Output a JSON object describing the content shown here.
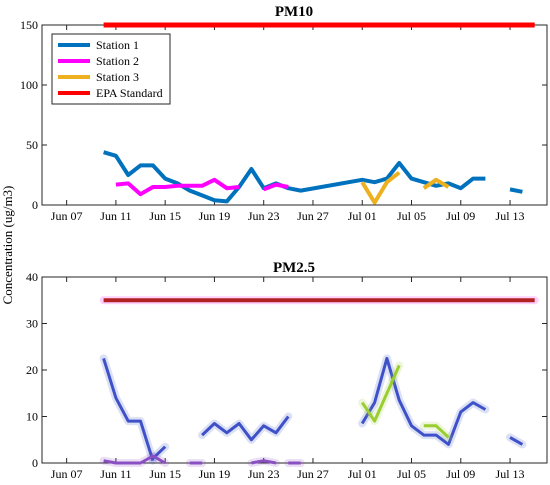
{
  "figure": {
    "shared_ylabel": "Concentration (ug/m3)",
    "x_tick_labels": [
      "Jun 07",
      "Jun 11",
      "Jun 15",
      "Jun 19",
      "Jun 23",
      "Jun 27",
      "Jul 01",
      "Jul 05",
      "Jul 09",
      "Jul 13"
    ]
  },
  "colors": {
    "station1": "#0072BD",
    "station2": "#FF00FF",
    "station3": "#EDB120",
    "epa": "#FF0000"
  },
  "chart_data": [
    {
      "type": "line",
      "title": "PM10",
      "ylabel": "Concentration (ug/m3)",
      "xlim": [
        "2020-06-05",
        "2020-07-16"
      ],
      "ylim": [
        0,
        150
      ],
      "y_ticks": [
        0,
        50,
        100,
        150
      ],
      "legend_position": "top-left",
      "series": [
        {
          "name": "Station 1",
          "color": "#0072BD",
          "segments": [
            [
              [
                "2020-06-10",
                44
              ],
              [
                "2020-06-11",
                41
              ],
              [
                "2020-06-12",
                25
              ],
              [
                "2020-06-13",
                33
              ],
              [
                "2020-06-14",
                33
              ],
              [
                "2020-06-15",
                22
              ],
              [
                "2020-06-16",
                18
              ],
              [
                "2020-06-17",
                12
              ],
              [
                "2020-06-18",
                8
              ],
              [
                "2020-06-19",
                4
              ],
              [
                "2020-06-20",
                3
              ],
              [
                "2020-06-21",
                15
              ],
              [
                "2020-06-22",
                30
              ],
              [
                "2020-06-23",
                14
              ],
              [
                "2020-06-24",
                18
              ],
              [
                "2020-06-25",
                14
              ],
              [
                "2020-06-26",
                12
              ],
              [
                "2020-07-01",
                21
              ],
              [
                "2020-07-02",
                19
              ],
              [
                "2020-07-03",
                22
              ],
              [
                "2020-07-04",
                35
              ],
              [
                "2020-07-05",
                22
              ],
              [
                "2020-07-06",
                19
              ],
              [
                "2020-07-07",
                16
              ],
              [
                "2020-07-08",
                18
              ],
              [
                "2020-07-09",
                14
              ],
              [
                "2020-07-10",
                22
              ],
              [
                "2020-07-11",
                22
              ]
            ],
            [
              [
                "2020-07-13",
                13
              ],
              [
                "2020-07-14",
                11
              ]
            ]
          ]
        },
        {
          "name": "Station 2",
          "color": "#FF00FF",
          "segments": [
            [
              [
                "2020-06-11",
                17
              ],
              [
                "2020-06-12",
                18
              ],
              [
                "2020-06-13",
                9
              ],
              [
                "2020-06-14",
                15
              ],
              [
                "2020-06-15",
                15
              ],
              [
                "2020-06-16",
                16
              ],
              [
                "2020-06-17",
                16
              ],
              [
                "2020-06-18",
                16
              ],
              [
                "2020-06-19",
                21
              ],
              [
                "2020-06-20",
                14
              ],
              [
                "2020-06-21",
                15
              ]
            ],
            [
              [
                "2020-06-23",
                13
              ],
              [
                "2020-06-24",
                17
              ],
              [
                "2020-06-25",
                15
              ]
            ]
          ]
        },
        {
          "name": "Station 3",
          "color": "#EDB120",
          "segments": [
            [
              [
                "2020-07-01",
                19
              ],
              [
                "2020-07-02",
                2
              ],
              [
                "2020-07-03",
                19
              ],
              [
                "2020-07-04",
                27
              ]
            ],
            [
              [
                "2020-07-06",
                14
              ],
              [
                "2020-07-07",
                21
              ],
              [
                "2020-07-08",
                15
              ]
            ]
          ]
        },
        {
          "name": "EPA Standard",
          "color": "#FF0000",
          "segments": [
            [
              [
                "2020-06-10",
                150
              ],
              [
                "2020-07-15",
                150
              ]
            ]
          ]
        }
      ]
    },
    {
      "type": "line",
      "title": "PM2.5",
      "ylabel": "Concentration (ug/m3)",
      "xlim": [
        "2020-06-05",
        "2020-07-16"
      ],
      "ylim": [
        0,
        40
      ],
      "y_ticks": [
        0,
        10,
        20,
        30,
        40
      ],
      "series": [
        {
          "color": "#3F51C9",
          "segments": [
            [
              [
                "2020-06-10",
                22.5
              ],
              [
                "2020-06-11",
                14
              ],
              [
                "2020-06-12",
                9
              ],
              [
                "2020-06-13",
                9
              ],
              [
                "2020-06-14",
                0.5
              ]
            ],
            [
              [
                "2020-06-14",
                1
              ],
              [
                "2020-06-15",
                3.5
              ]
            ],
            [
              [
                "2020-06-18",
                6
              ],
              [
                "2020-06-19",
                8.5
              ],
              [
                "2020-06-20",
                6.5
              ],
              [
                "2020-06-21",
                8.5
              ],
              [
                "2020-06-22",
                5
              ],
              [
                "2020-06-23",
                8
              ],
              [
                "2020-06-24",
                6.5
              ],
              [
                "2020-06-25",
                10
              ]
            ],
            [
              [
                "2020-07-01",
                8.5
              ],
              [
                "2020-07-02",
                13
              ],
              [
                "2020-07-03",
                22.5
              ],
              [
                "2020-07-04",
                13.5
              ],
              [
                "2020-07-05",
                8
              ],
              [
                "2020-07-06",
                6
              ],
              [
                "2020-07-07",
                6
              ],
              [
                "2020-07-08",
                4
              ],
              [
                "2020-07-09",
                11
              ],
              [
                "2020-07-10",
                13
              ],
              [
                "2020-07-11",
                11.5
              ]
            ],
            [
              [
                "2020-07-13",
                5.5
              ],
              [
                "2020-07-14",
                4
              ]
            ]
          ]
        },
        {
          "color": "#8B4FC4",
          "segments": [
            [
              [
                "2020-06-10",
                0.5
              ],
              [
                "2020-06-11",
                0
              ],
              [
                "2020-06-12",
                0
              ],
              [
                "2020-06-13",
                0
              ],
              [
                "2020-06-14",
                1.5
              ],
              [
                "2020-06-15",
                0
              ]
            ],
            [
              [
                "2020-06-17",
                0
              ],
              [
                "2020-06-18",
                0
              ]
            ],
            [
              [
                "2020-06-22",
                0
              ],
              [
                "2020-06-23",
                0.5
              ],
              [
                "2020-06-24",
                0
              ]
            ],
            [
              [
                "2020-06-25",
                0
              ],
              [
                "2020-06-26",
                0
              ]
            ]
          ]
        },
        {
          "color": "#9ACD32",
          "segments": [
            [
              [
                "2020-07-01",
                13
              ],
              [
                "2020-07-02",
                9
              ],
              [
                "2020-07-03",
                15
              ],
              [
                "2020-07-04",
                21
              ]
            ],
            [
              [
                "2020-07-06",
                8
              ],
              [
                "2020-07-07",
                8
              ],
              [
                "2020-07-08",
                5.5
              ]
            ]
          ]
        },
        {
          "color": "#B22222",
          "segments": [
            [
              [
                "2020-06-10",
                35
              ],
              [
                "2020-07-15",
                35
              ]
            ]
          ]
        }
      ]
    }
  ]
}
